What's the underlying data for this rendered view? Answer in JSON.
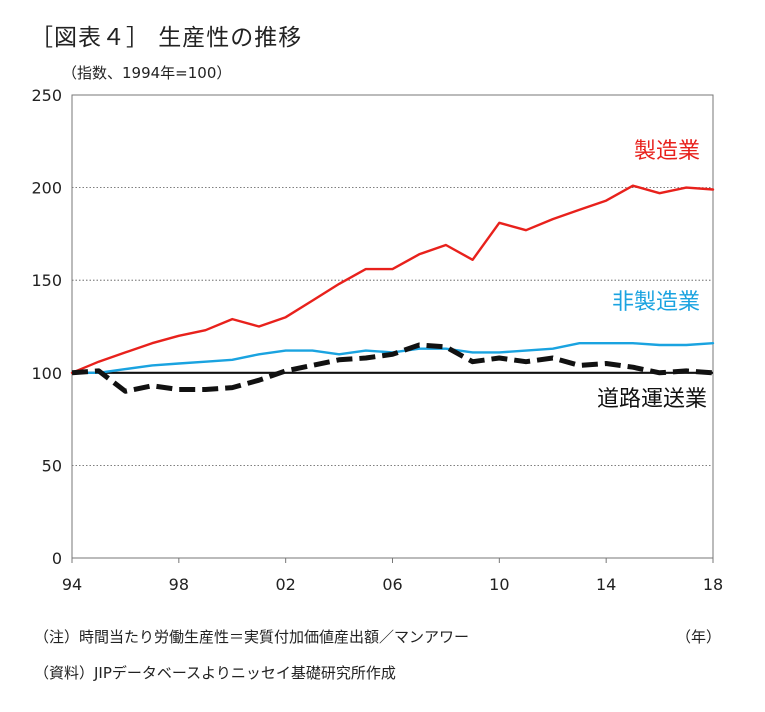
{
  "title": "［図表４］ 生産性の推移",
  "unit_label": "（指数、1994年=100）",
  "x_unit": "（年）",
  "notes": [
    "（注）時間当たり労働生産性＝実質付加価値産出額／マンアワー",
    "（資料）JIPデータベースよりニッセイ基礎研究所作成"
  ],
  "chart_data": {
    "type": "line",
    "x": [
      1994,
      1995,
      1996,
      1997,
      1998,
      1999,
      2000,
      2001,
      2002,
      2003,
      2004,
      2005,
      2006,
      2007,
      2008,
      2009,
      2010,
      2011,
      2012,
      2013,
      2014,
      2015,
      2016,
      2017,
      2018
    ],
    "x_tick_labels": [
      "94",
      "98",
      "02",
      "06",
      "10",
      "14",
      "18"
    ],
    "x_tick_values": [
      1994,
      1998,
      2002,
      2006,
      2010,
      2014,
      2018
    ],
    "xlim": [
      1994,
      2018
    ],
    "ylim": [
      0,
      250
    ],
    "y_ticks": [
      0,
      50,
      100,
      150,
      200,
      250
    ],
    "grid": "horizontal dotted",
    "reference_line": 100,
    "series": [
      {
        "name": "製造業",
        "color": "#e8211c",
        "style": "solid",
        "values": [
          100,
          106,
          111,
          116,
          120,
          123,
          129,
          125,
          130,
          139,
          148,
          156,
          156,
          164,
          169,
          161,
          181,
          177,
          183,
          188,
          193,
          201,
          197,
          200,
          199
        ]
      },
      {
        "name": "非製造業",
        "color": "#1aa3e0",
        "style": "solid",
        "values": [
          100,
          100,
          102,
          104,
          105,
          106,
          107,
          110,
          112,
          112,
          110,
          112,
          111,
          113,
          113,
          111,
          111,
          112,
          113,
          116,
          116,
          116,
          115,
          115,
          116
        ]
      },
      {
        "name": "道路運送業",
        "color": "#111111",
        "style": "dashed",
        "values": [
          100,
          101,
          90,
          93,
          91,
          91,
          92,
          96,
          101,
          104,
          107,
          108,
          110,
          115,
          114,
          106,
          108,
          106,
          108,
          104,
          105,
          103,
          100,
          101,
          100
        ]
      }
    ]
  }
}
